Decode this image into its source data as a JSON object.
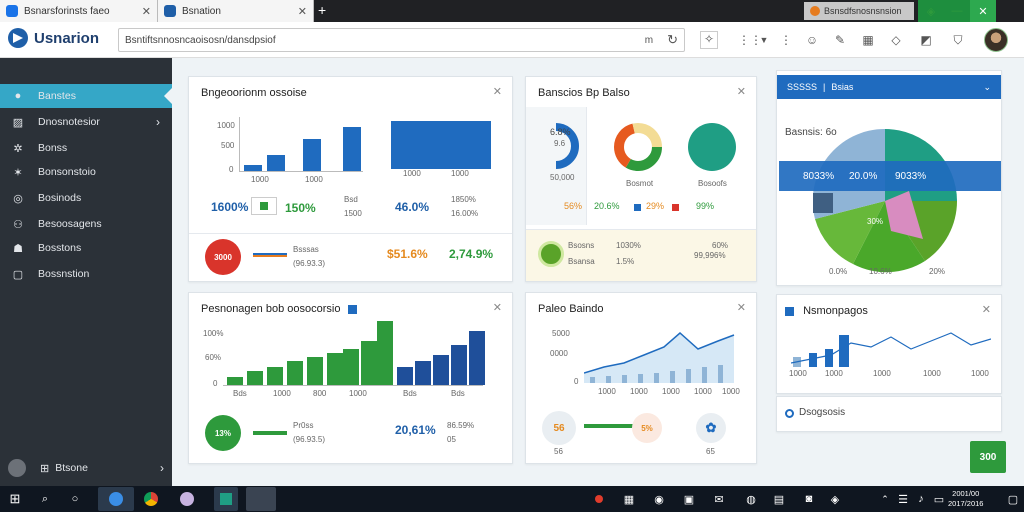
{
  "browser": {
    "tab1_title": "Bsnarsforinsts faeo",
    "tab2_title": "Bsnation",
    "tab_right_title": "Bsnsdfsnosnsnsion",
    "address": "Bsntiftsnnosncaoisosn/dansdpsiof",
    "address_suffix": "m"
  },
  "app": {
    "name": "Usnarion"
  },
  "sidebar": {
    "items": [
      {
        "label": "Banstes",
        "icon": "dashboard-icon"
      },
      {
        "label": "Dnosnotesior",
        "icon": "chart-icon"
      },
      {
        "label": "Bonss",
        "icon": "users-icon"
      },
      {
        "label": "Bonsonstoio",
        "icon": "star-icon"
      },
      {
        "label": "Bosinods",
        "icon": "settings-icon"
      },
      {
        "label": "Besoosagens",
        "icon": "reports-icon"
      },
      {
        "label": "Bosstons",
        "icon": "messages-icon"
      },
      {
        "label": "Bossnstion",
        "icon": "docs-icon"
      }
    ],
    "footer_label": "Btsone"
  },
  "card1": {
    "title": "Bngeoorionm ossoise",
    "yticks": [
      "1000",
      "500",
      "0"
    ],
    "xticks": [
      "1000",
      "1000",
      "1000",
      "1000"
    ],
    "stat1": "1600%",
    "stat2": "150%",
    "stat3a": "Bsd",
    "stat3b": "1500",
    "stat4": "46.0%",
    "stat5a": "1850%",
    "stat5b": "16.00%",
    "bottom_badge": "3000",
    "bottom_label1": "Bsssas",
    "bottom_label2": "(96.93.3)",
    "bottom_val1": "$51.6%",
    "bottom_val2": "2,74.9%"
  },
  "card2": {
    "title": "Banscios Bp Balso",
    "left_pct": "6.8%",
    "left_sub": "9.6",
    "left_caption": "50,000",
    "donut1_caption": "Bosmot",
    "donut2_caption": "Bosoofs",
    "legend": [
      "56%",
      "20.6%",
      "29%",
      "99%"
    ],
    "badge_label1": "Bsosns",
    "badge_label2": "Bsansa",
    "mid1": "1030%",
    "mid2": "1.5%",
    "right1": "60%",
    "right2": "99,996%"
  },
  "card3": {
    "dropdown": "SSSSS",
    "dropdown2": "Bsias",
    "pie_title": "Basnsis: 6o",
    "banner": [
      "8033%",
      "20.0%",
      "9033%"
    ],
    "pie_labels": [
      "0.0%",
      "10.6%",
      "20%"
    ],
    "pie_callout": "30%"
  },
  "card4": {
    "title": "Pesnonagen bob oosocorsio",
    "yticks": [
      "100%",
      "60%",
      "0"
    ],
    "xticks": [
      "Bds",
      "1000",
      "800",
      "1000",
      "Bds",
      "Bds"
    ],
    "badge": "13%",
    "label1": "Pr0ss",
    "label2": "(96.93.5)",
    "value1": "20,61%",
    "value2": "86.59%",
    "value3": "05"
  },
  "card5": {
    "title": "Paleo Baindo",
    "yticks": [
      "5000",
      "0000",
      "0"
    ],
    "xticks": [
      "1000",
      "1000",
      "1000",
      "1000",
      "1000"
    ],
    "badge1": "56",
    "badge2_label": "5%",
    "badge1_caption": "56",
    "badge3_caption": "65"
  },
  "card6": {
    "title": "Nsmonpagos",
    "xticks": [
      "1000",
      "1000",
      "1000",
      "1000",
      "1000"
    ],
    "footer_title": "Dsogsosis"
  },
  "fab_label": "300",
  "taskbar": {
    "time": "2001/00",
    "date": "2017/2016"
  },
  "colors": {
    "accent_blue": "#1f5fa8",
    "accent_green": "#2e9a3c",
    "sidebar_bg": "#2b3138",
    "sidebar_active": "#35a7c7"
  }
}
